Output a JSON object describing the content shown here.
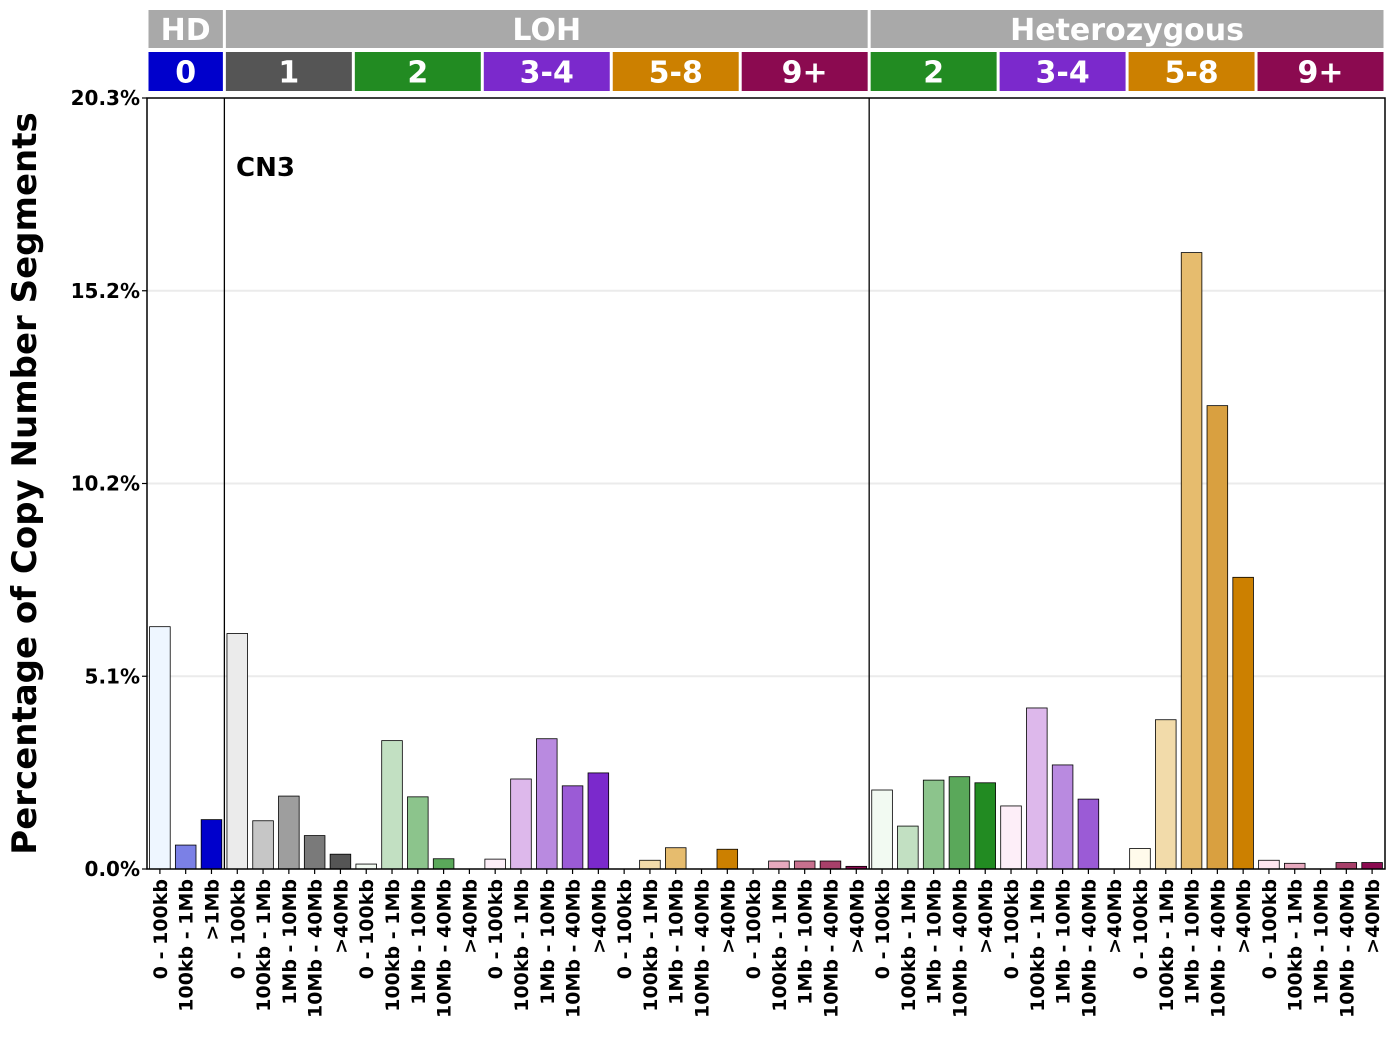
{
  "chart_data": {
    "type": "bar",
    "annotation": "CN3",
    "ylabel": "Percentage of Copy Number Segments",
    "ylim": [
      0,
      20.3
    ],
    "yticks": [
      "0.0%",
      "5.1%",
      "10.2%",
      "15.2%",
      "20.3%"
    ],
    "ytick_values": [
      0,
      5.075,
      10.15,
      15.225,
      20.3
    ],
    "grid": true,
    "top_groups": [
      {
        "label": "HD",
        "span": 3
      },
      {
        "label": "LOH",
        "span": 25
      },
      {
        "label": "Heterozygous",
        "span": 20
      }
    ],
    "cn_groups": [
      {
        "label": "0",
        "span": 3,
        "color": "#0000CC"
      },
      {
        "label": "1",
        "span": 5,
        "color": "#555555"
      },
      {
        "label": "2",
        "span": 5,
        "color": "#228B22"
      },
      {
        "label": "3-4",
        "span": 5,
        "color": "#7B29CC"
      },
      {
        "label": "5-8",
        "span": 5,
        "color": "#CC8000"
      },
      {
        "label": "9+",
        "span": 5,
        "color": "#8B0A50"
      },
      {
        "label": "2",
        "span": 5,
        "color": "#228B22"
      },
      {
        "label": "3-4",
        "span": 5,
        "color": "#7B29CC"
      },
      {
        "label": "5-8",
        "span": 5,
        "color": "#CC8000"
      },
      {
        "label": "9+",
        "span": 5,
        "color": "#8B0A50"
      }
    ],
    "categories": [
      "0 - 100kb",
      "100kb - 1Mb",
      ">1Mb",
      "0 - 100kb",
      "100kb - 1Mb",
      "1Mb - 10Mb",
      "10Mb - 40Mb",
      ">40Mb",
      "0 - 100kb",
      "100kb - 1Mb",
      "1Mb - 10Mb",
      "10Mb - 40Mb",
      ">40Mb",
      "0 - 100kb",
      "100kb - 1Mb",
      "1Mb - 10Mb",
      "10Mb - 40Mb",
      ">40Mb",
      "0 - 100kb",
      "100kb - 1Mb",
      "1Mb - 10Mb",
      "10Mb - 40Mb",
      ">40Mb",
      "0 - 100kb",
      "100kb - 1Mb",
      "1Mb - 10Mb",
      "10Mb - 40Mb",
      ">40Mb",
      "0 - 100kb",
      "100kb - 1Mb",
      "1Mb - 10Mb",
      "10Mb - 40Mb",
      ">40Mb",
      "0 - 100kb",
      "100kb - 1Mb",
      "1Mb - 10Mb",
      "10Mb - 40Mb",
      ">40Mb",
      "0 - 100kb",
      "100kb - 1Mb",
      "1Mb - 10Mb",
      "10Mb - 40Mb",
      ">40Mb",
      "0 - 100kb",
      "100kb - 1Mb",
      "1Mb - 10Mb",
      "10Mb - 40Mb",
      ">40Mb"
    ],
    "values": [
      6.38,
      0.63,
      1.3,
      6.2,
      1.27,
      1.92,
      0.88,
      0.39,
      0.13,
      3.38,
      1.9,
      0.27,
      0.0,
      0.26,
      2.37,
      3.43,
      2.19,
      2.53,
      0.0,
      0.23,
      0.56,
      0.0,
      0.52,
      0.0,
      0.21,
      0.21,
      0.21,
      0.07,
      2.08,
      1.13,
      2.34,
      2.43,
      2.27,
      1.66,
      4.24,
      2.74,
      1.84,
      0.0,
      0.54,
      3.93,
      16.23,
      12.2,
      7.68,
      0.23,
      0.15,
      0.0,
      0.17,
      0.17
    ],
    "bar_colors": [
      "#EEF6FF",
      "#7B80E6",
      "#0000CC",
      "#EBEBEB",
      "#C6C6C6",
      "#9E9E9E",
      "#7A7A7A",
      "#555555",
      "#F2FAF2",
      "#C2E0C2",
      "#8CC48C",
      "#5AA85A",
      "#228B22",
      "#FDEEF8",
      "#DDB8EB",
      "#B98AE0",
      "#9B5BD6",
      "#7B29CC",
      "#FFFBEB",
      "#F2DBAA",
      "#E6BC6E",
      "#D9A040",
      "#CC8000",
      "#FFE6EF",
      "#E6A9BE",
      "#C7708E",
      "#A8406A",
      "#8B0A50",
      "#F2FAF2",
      "#C2E0C2",
      "#8CC48C",
      "#5AA85A",
      "#228B22",
      "#FDEEF8",
      "#DDB8EB",
      "#B98AE0",
      "#9B5BD6",
      "#7B29CC",
      "#FFFBEB",
      "#F2DBAA",
      "#E6BC6E",
      "#D9A040",
      "#CC8000",
      "#FFE6EF",
      "#E6A9BE",
      "#C7708E",
      "#A8406A",
      "#8B0A50"
    ],
    "section_dividers_after": [
      3,
      28
    ]
  }
}
